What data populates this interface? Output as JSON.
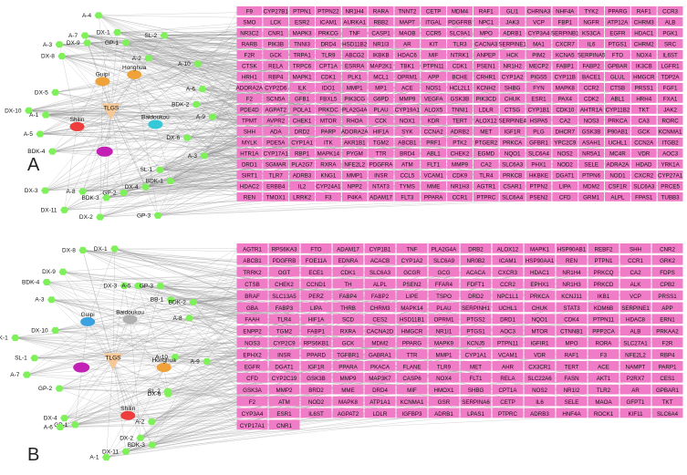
{
  "panels": [
    {
      "letter": "A",
      "herbs": [
        {
          "label": "Guipi",
          "color": "#f0a23a"
        },
        {
          "label": "Honghua",
          "color": "#f0a23a"
        },
        {
          "label": "Shilin",
          "color": "#ef3d3d"
        },
        {
          "label": "Baidoukou",
          "color": "#34c8d8"
        }
      ],
      "formula": {
        "label": "TLGS",
        "color": "#f6c896"
      },
      "disease": {
        "label": "",
        "color": "#c321b5"
      },
      "compounds": [
        "A-3",
        "DX-6",
        "SL-1",
        "BDK-1",
        "DX-4",
        "GP-3",
        "GP-2",
        "BDK-3",
        "DX-2",
        "A-8",
        "DX-11",
        "DX-3",
        "BDK-4",
        "A-5",
        "DX-10",
        "A-1",
        "DX-5",
        "DX-8",
        "A-3",
        "DX-9",
        "A-7",
        "A-4",
        "DX-1",
        "GP-1",
        "A-2",
        "SL-2",
        "A-10",
        "A-6",
        "BDK-2",
        "A-9"
      ],
      "targets": [
        [
          "F9",
          "CYP27B1",
          "PTPN1",
          "PTPN22",
          "NR1H4",
          "RARA",
          "TNNT2",
          "CETP",
          "MDM4",
          "RAF1",
          "GLI1",
          "CHRNA3",
          "NHF4A",
          "TYK2",
          "PPARG",
          "RAF1",
          "CCR3"
        ],
        [
          "SMO",
          "LCK",
          "ESR2",
          "ICAM1",
          "AURKA1",
          "RBB2",
          "MAPT",
          "ITGAL",
          "PDGFRB",
          "NPC1",
          "JAK3",
          "VCP",
          "FBP1",
          "NGFR",
          "ATP12A",
          "CHRM3",
          "ALB"
        ],
        [
          "NR3C2",
          "CNR1",
          "MAPK3",
          "PRKCG",
          "TNF",
          "CASP1",
          "MAOB",
          "CCR5",
          "SLC9A1",
          "MPO",
          "ADRB1",
          "CYP3A4",
          "SERPINB1",
          "KS3CA",
          "EGFR",
          "HDAC1",
          "PGK1"
        ],
        [
          "RARB",
          "PIK3B",
          "TNNI3",
          "DRD4",
          "HSD11B2",
          "NR1I3",
          "AR",
          "KIT",
          "TLR3",
          "CACNA3",
          "SERPINE1",
          "MA1",
          "CXCR7",
          "IL6",
          "PTGS1",
          "CHRM2",
          "SRC"
        ],
        [
          "F2R",
          "GCK",
          "TRPA1",
          "TLR9",
          "ABCG2",
          "IKBKB",
          "HDAC6",
          "MIF",
          "NTRK1",
          "ANPEP",
          "HCK",
          "PIM2",
          "KCNA5",
          "SERPINA5",
          "FTO",
          "NOX4",
          "IL6ST"
        ],
        [
          "CTSK",
          "RELA",
          "TRPC6",
          "CPT1A",
          "ESRRA",
          "MAP2K1",
          "TBK1",
          "PTPN11",
          "CDK1",
          "PSEN1",
          "NR1H2",
          "MECP2",
          "FABP1",
          "FABP2",
          "GPBAR",
          "IK3CB",
          "LGFR1"
        ],
        [
          "HRH1",
          "RBP4",
          "MAPK1",
          "CDK1",
          "PLK1",
          "MCL1",
          "OPRM1",
          "APP",
          "BCHE",
          "CRHR1",
          "CYP1A2",
          "PIGS5",
          "CYP11B",
          "BACE1",
          "GLUL",
          "HMGCR",
          "TDP2A"
        ],
        [
          "ADORA2A",
          "CYP2D6",
          "ILK",
          "IDO1",
          "MMP1",
          "MP1",
          "ACE",
          "NOS1",
          "HCL2L1",
          "KCNH2",
          "SHBG",
          "FYN",
          "MAPK8",
          "CCR2",
          "CTSB",
          "PRSS1",
          "FGF1"
        ],
        [
          "F2",
          "SCN5A",
          "GFB1",
          "FBXL5",
          "PIK3CG",
          "G6PD",
          "MMP9",
          "VEGFA",
          "GSK3B",
          "PIK3CD",
          "CHUK",
          "ESR1",
          "PAX4",
          "CDK2",
          "ABL1",
          "HRH4",
          "FXA1"
        ],
        [
          "PDE4D",
          "AGPAT2",
          "POLA1",
          "PRKDC",
          "PLA2G4A",
          "PLAU",
          "CYP19A1",
          "ALOX5",
          "TNNI1",
          "LDLR",
          "CTSG",
          "CYP1B1",
          "CDK10",
          "AHTR1A",
          "CYP11B2",
          "TKT",
          "JAK2"
        ],
        [
          "TPMT",
          "AVPR2",
          "CHEK1",
          "MTOR",
          "RHOA",
          "CCK",
          "NOX1",
          "KDR",
          "TERT",
          "ALOX12",
          "SERPINE4",
          "HSPA5",
          "CA2",
          "NOS3",
          "PRKCA",
          "CA3",
          "RORC"
        ],
        [
          "SHH",
          "ADA",
          "DRD2",
          "PARP",
          "ADORA2A",
          "HIF1A",
          "SYK",
          "CCNA2",
          "ADRB2",
          "MET",
          "IGF1R",
          "PLG",
          "DHCR7",
          "GSK3B",
          "P90AB1",
          "GCK",
          "KCNMA1"
        ],
        [
          "MYLK",
          "PDE5A",
          "CYP1A1",
          "ITK",
          "AKR1B1",
          "TGM2",
          "ABCB1",
          "PRF1",
          "PTK2",
          "PTGER2",
          "PRKCA",
          "GFBR1",
          "YPC2C9",
          "ASAH1",
          "UCHL1",
          "CCN2A",
          "ITGB2"
        ],
        [
          "HTR1A",
          "CYP17A1",
          "RBP1",
          "MAPK14",
          "PYGM",
          "TTR",
          "BRD4",
          "ABL1",
          "CHEK2",
          "EGMD",
          "NQO1",
          "SLC6A4",
          "NOS2",
          "NR5A1",
          "MC4R",
          "VDR",
          "AOC3"
        ],
        [
          "DRD1",
          "SGMAR",
          "PLA2G7",
          "RXRA",
          "NFE2L2",
          "PDGFRA",
          "ATM",
          "FLT1",
          "MMP9",
          "CA2",
          "SLC6A3",
          "PHX1",
          "NOD2",
          "SELE",
          "ADRA2A",
          "HDAD",
          "YRK1A"
        ],
        [
          "SIRT1",
          "TLR7",
          "ADRB3",
          "KNG1",
          "MMP1",
          "INSR",
          "CCL5",
          "VCAM1",
          "CDK9",
          "TLR4",
          "PRKCB",
          "HKBKE",
          "DGAT1",
          "PTPN6",
          "NOD1",
          "CXCR2",
          "CYP27A1"
        ],
        [
          "HDAC2",
          "ERBB4",
          "IL2",
          "CYP24A1",
          "NPP2",
          "NTAT3",
          "TYMS",
          "MME",
          "NR1H3",
          "AGTR1",
          "CSAR1",
          "PTPN2",
          "LIPA",
          "MDM2",
          "CSF1R",
          "SLC6A3",
          "PRCE5"
        ],
        [
          "REN",
          "TMOX1",
          "LRRK2",
          "F3",
          "P4KA",
          "ADAM17",
          "FLT3",
          "PPARA",
          "CCR1",
          "PTPRC",
          "SLC6A4",
          "PSEN2",
          "CFD",
          "GRM1",
          "ALPL",
          "FPAS1",
          "TUBB3"
        ]
      ]
    },
    {
      "letter": "B",
      "herbs": [
        {
          "label": "Guipi",
          "color": "#3aa2e0"
        },
        {
          "label": "Baidoukou",
          "color": "#b0b0b0"
        },
        {
          "label": "Honghua",
          "color": "#f0a23a"
        },
        {
          "label": "Shilin",
          "color": "#ef3d3d"
        }
      ],
      "formula": {
        "label": "TLGS",
        "color": "#f6c896"
      },
      "disease": {
        "label": "",
        "color": "#c321b5"
      },
      "compounds": [
        "A-9",
        "SL-2",
        "DX-6",
        "A-2",
        "BDK-3",
        "DX-2",
        "DX-11",
        "A-1",
        "GP-1",
        "DX-4",
        "A-6",
        "GP-2",
        "A-7",
        "SL-1",
        "BDK-1",
        "DX-10",
        "BDK-4",
        "A-3",
        "DX-9",
        "DX-8",
        "DX-1",
        "DX-3",
        "A-5",
        "GP-3",
        "BB-1",
        "BDK-2",
        "A-8",
        "A-10"
      ],
      "targets": [
        [
          "AGTR1",
          "RPS6KA3",
          "FTO",
          "ADAM17",
          "CYP1B1",
          "TNF",
          "PLA2G4A",
          "DRB2",
          "ALOX12",
          "MAPK1",
          "HSP90AB1",
          "REBF2",
          "SHH",
          "CNR2"
        ],
        [
          "ABCB1",
          "PDGFRB",
          "FOE11A",
          "EDNRA",
          "ACACB",
          "CYP1A2",
          "SLC6A9",
          "NR0B2",
          "ICAM1",
          "HSP90AA1",
          "REN",
          "PTPN1",
          "CCR1",
          "GRK2"
        ],
        [
          "TRRK2",
          "OGT",
          "ECE1",
          "CDK1",
          "SLC6A3",
          "GCGR",
          "GCG",
          "ACACA",
          "CXCR3",
          "HDAC1",
          "NR1H4",
          "PRKCQ",
          "CA2",
          "FDPS"
        ],
        [
          "CTSB",
          "CHEK2",
          "CCND1",
          "TH",
          "ALPL",
          "PSEN2",
          "FFAR4",
          "FDFT1",
          "CCR2",
          "EPHX1",
          "NR1H3",
          "PRKCD",
          "ALK",
          "CPB2"
        ],
        [
          "BRAF",
          "SLC13A5",
          "PERZ",
          "FABP4",
          "FABP2",
          "LIPE",
          "TSPO",
          "DRD2",
          "NPC1L1",
          "PRKCA",
          "KCNJ11",
          "IKB1",
          "VCP",
          "PRSS1"
        ],
        [
          "GBA",
          "FABP3",
          "LIPA",
          "THRB",
          "CHRM3",
          "MAPK14",
          "PLAU",
          "SERPINH1",
          "UCHL1",
          "CHUK",
          "STAT3",
          "KDM6B",
          "SERPINE1",
          "APP"
        ],
        [
          "FAAH",
          "TLR4",
          "HIF1A",
          "SCD",
          "CES2",
          "HSD11B1",
          "OPRM1",
          "PTGS2",
          "DRD1",
          "NQO1",
          "CDK4",
          "PTPN11",
          "HDAC8",
          "ERN1"
        ],
        [
          "ENPP2",
          "TGM2",
          "FABP1",
          "RXRA",
          "CACNA2D",
          "HMGCR",
          "NR1I1",
          "PTGS1",
          "AOC3",
          "MTOR",
          "CTNNB1",
          "PPP2CA",
          "ALB",
          "PRKAA2"
        ],
        [
          "NOS3",
          "CYP2C9",
          "RPS6KB1",
          "GCK",
          "MDM2",
          "PPARG",
          "MAPK9",
          "KCNJ5",
          "PTPN11",
          "IGFIR1",
          "MPO",
          "RORA",
          "SLC27A1",
          "F2R"
        ],
        [
          "EPHX2",
          "INSR",
          "PPARD",
          "TGFBR1",
          "GABRA1",
          "TTR",
          "MMP1",
          "CYP1A1",
          "VCAM1",
          "VDR",
          "RAF1",
          "F3",
          "NFE2L2",
          "RBP4"
        ],
        [
          "EGFR",
          "DGAT1",
          "IGF1R",
          "PPARA",
          "PKACA",
          "FLANE",
          "TLR9",
          "MET",
          "AHR",
          "CX3CR1",
          "TERT",
          "ACE",
          "NAMPT",
          "PARP1"
        ],
        [
          "CFD",
          "CYP2C19",
          "GSK3B",
          "MMP9",
          "MAP3K7",
          "CASP6",
          "NOX4",
          "FLT1",
          "RELA",
          "SLC22A6",
          "FASN",
          "AKT1",
          "P2RX7",
          "CES1"
        ],
        [
          "GSK3A",
          "MMP2",
          "BRD2",
          "MME",
          "DRD4",
          "MIF",
          "HMOX1",
          "SHBG",
          "CPT1A",
          "NOS2",
          "NR1I2",
          "TLR2",
          "AR",
          "GPBAR1"
        ],
        [
          "F2",
          "ATM",
          "NOD2",
          "MAPK8",
          "ATP1A1",
          "KCNMA1",
          "GSR",
          "SERPINA6",
          "CETP",
          "IL6",
          "SELE",
          "MAOA",
          "GFPT1",
          "TKT"
        ],
        [
          "CYP3A4",
          "ESR1",
          "IL6ST",
          "AGPAT2",
          "LDLR",
          "IGFBP3",
          "ADRB1",
          "LPAS1",
          "PTPRC",
          "ADRB3",
          "HNF4A",
          "ROCK1",
          "KIF11",
          "SLC6A4"
        ],
        [
          "CYP17A1",
          "CNR1"
        ]
      ]
    }
  ],
  "colors": {
    "compound_node": "#7ef05a",
    "target_node": "#f07cc8",
    "edge": "#8c8c8c"
  }
}
